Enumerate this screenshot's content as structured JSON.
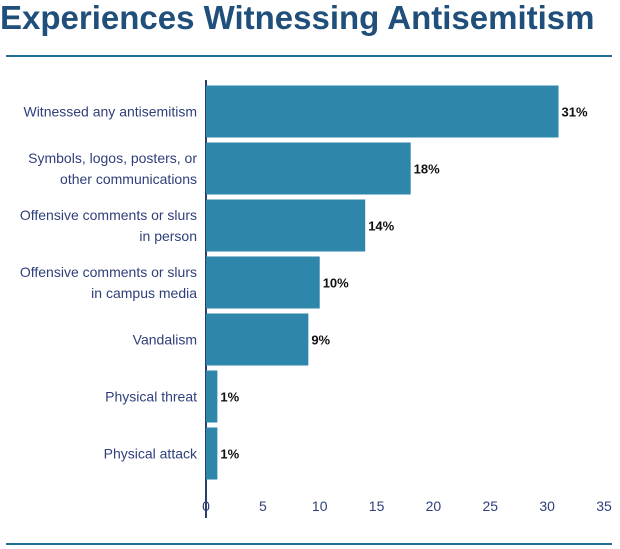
{
  "title": "Experiences Witnessing Antisemitism",
  "colors": {
    "bar": "#2e86ab",
    "title": "#1f4f7a",
    "rule": "#1f6f96",
    "axis": "#2a3d6b",
    "label": "#2f3f7a"
  },
  "chart_data": {
    "type": "bar",
    "orientation": "horizontal",
    "title": "Experiences Witnessing Antisemitism",
    "xlabel": "",
    "ylabel": "",
    "categories": [
      [
        "Witnessed any antisemitism"
      ],
      [
        "Symbols, logos, posters, or",
        "other communications"
      ],
      [
        "Offensive comments or slurs",
        "in person"
      ],
      [
        "Offensive comments or slurs",
        "in campus media"
      ],
      [
        "Vandalism"
      ],
      [
        "Physical threat"
      ],
      [
        "Physical attack"
      ]
    ],
    "values": [
      31,
      18,
      14,
      10,
      9,
      1,
      1
    ],
    "value_labels": [
      "31%",
      "18%",
      "14%",
      "10%",
      "9%",
      "1%",
      "1%"
    ],
    "xticks": [
      0,
      5,
      10,
      15,
      20,
      25,
      30,
      35
    ],
    "xlim": [
      0,
      35
    ],
    "grid": false,
    "legend": "none"
  }
}
